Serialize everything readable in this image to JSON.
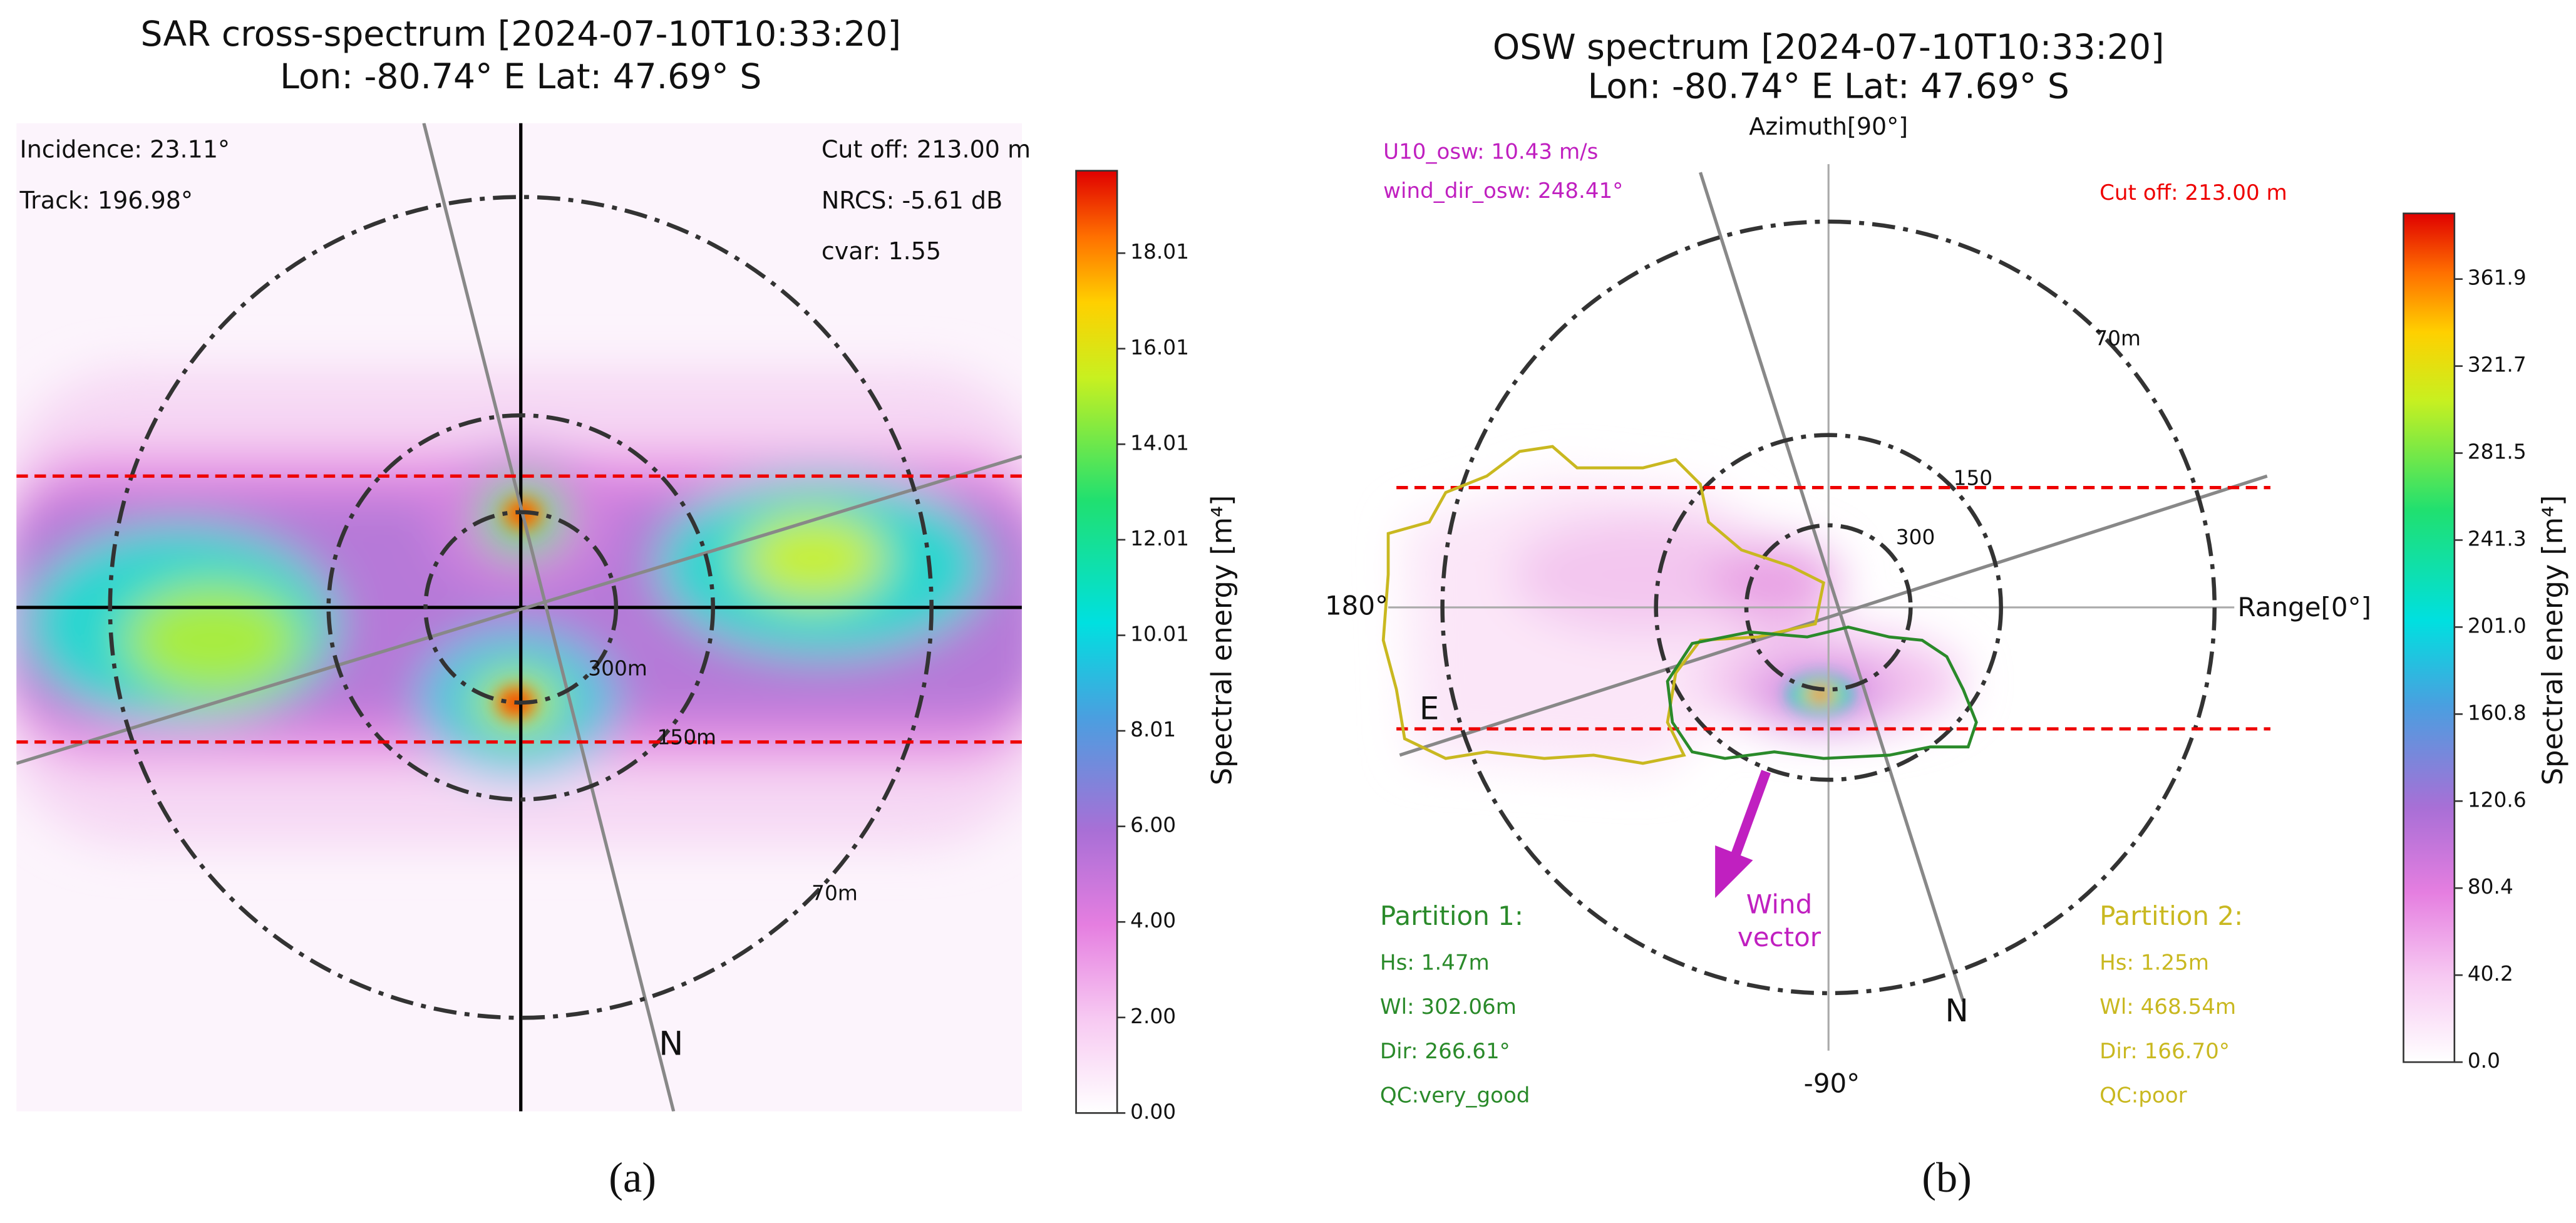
{
  "panel_a": {
    "title": "SAR cross-spectrum [2024-07-10T10:33:20]",
    "subtitle": "Lon: -80.74° E Lat: 47.69° S",
    "incidence": "Incidence: 23.11°",
    "track": "Track: 196.98°",
    "cutoff": "Cut off: 213.00 m",
    "nrcs": "NRCS: -5.61 dB",
    "cvar": "cvar: 1.55",
    "ring_labels": [
      "300m",
      "150m",
      "70m"
    ],
    "north": "N",
    "colorbar_label": "Spectral energy [m⁴]",
    "colorbar_ticks": [
      "0.00",
      "2.00",
      "4.00",
      "6.00",
      "8.01",
      "10.01",
      "12.01",
      "14.01",
      "16.01",
      "18.01"
    ],
    "caption": "(a)"
  },
  "panel_b": {
    "title": "OSW spectrum [2024-07-10T10:33:20]",
    "subtitle": "Lon: -80.74° E Lat: 47.69° S",
    "u10": "U10_osw: 10.43 m/s",
    "wind_dir": "wind_dir_osw: 248.41°",
    "cutoff": "Cut off: 213.00 m",
    "azimuth": "Azimuth[90°]",
    "range": "Range[0°]",
    "west": "180°",
    "south": "-90°",
    "east": "E",
    "north": "N",
    "ring_labels": [
      "300",
      "150",
      "70m"
    ],
    "wind_label": [
      "Wind",
      "vector"
    ],
    "partition_1": {
      "title": "Partition 1:",
      "hs": "Hs: 1.47m",
      "wl": "Wl: 302.06m",
      "dir": "Dir: 266.61°",
      "qc": "QC:very_good"
    },
    "partition_2": {
      "title": "Partition 2:",
      "hs": "Hs: 1.25m",
      "wl": "Wl: 468.54m",
      "dir": "Dir: 166.70°",
      "qc": "QC:poor"
    },
    "colorbar_label": "Spectral energy [m⁴]",
    "colorbar_ticks": [
      "0.0",
      "40.2",
      "80.4",
      "120.6",
      "160.8",
      "201.0",
      "241.3",
      "281.5",
      "321.7",
      "361.9"
    ],
    "caption": "(b)"
  }
}
